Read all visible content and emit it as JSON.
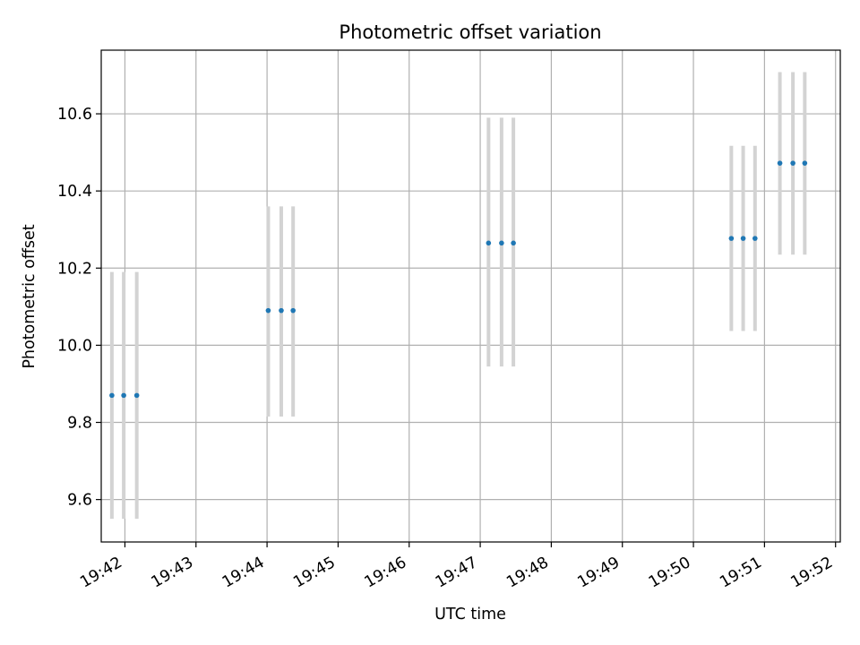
{
  "chart_data": {
    "type": "scatter",
    "title": "Photometric offset variation",
    "xlabel": "UTC time",
    "ylabel": "Photometric offset",
    "xlim": [
      "19:41:40",
      "19:52:04"
    ],
    "ylim": [
      9.49,
      10.765
    ],
    "x_ticks": [
      "19:42",
      "19:43",
      "19:44",
      "19:45",
      "19:46",
      "19:47",
      "19:48",
      "19:49",
      "19:50",
      "19:51",
      "19:52"
    ],
    "y_ticks": [
      "9.6",
      "9.8",
      "10.0",
      "10.2",
      "10.4",
      "10.6"
    ],
    "grid": true,
    "legend": "none",
    "colors": {
      "points": "#1f77b4",
      "errorbars": "#d3d3d3",
      "grid": "#b0b0b0",
      "axes": "#000000"
    },
    "points": [
      {
        "x": "19:41:49",
        "y": 9.87,
        "err_low": 9.55,
        "err_high": 10.19
      },
      {
        "x": "19:41:59",
        "y": 9.87,
        "err_low": 9.55,
        "err_high": 10.19
      },
      {
        "x": "19:42:10",
        "y": 9.87,
        "err_low": 9.55,
        "err_high": 10.19
      },
      {
        "x": "19:44:01",
        "y": 10.09,
        "err_low": 9.815,
        "err_high": 10.36
      },
      {
        "x": "19:44:12",
        "y": 10.09,
        "err_low": 9.815,
        "err_high": 10.36
      },
      {
        "x": "19:44:22",
        "y": 10.09,
        "err_low": 9.815,
        "err_high": 10.36
      },
      {
        "x": "19:47:07",
        "y": 10.265,
        "err_low": 9.945,
        "err_high": 10.59
      },
      {
        "x": "19:47:18",
        "y": 10.265,
        "err_low": 9.945,
        "err_high": 10.59
      },
      {
        "x": "19:47:28",
        "y": 10.265,
        "err_low": 9.945,
        "err_high": 10.59
      },
      {
        "x": "19:50:32",
        "y": 10.277,
        "err_low": 10.037,
        "err_high": 10.517
      },
      {
        "x": "19:50:42",
        "y": 10.277,
        "err_low": 10.037,
        "err_high": 10.517
      },
      {
        "x": "19:50:52",
        "y": 10.277,
        "err_low": 10.037,
        "err_high": 10.517
      },
      {
        "x": "19:51:13",
        "y": 10.472,
        "err_low": 10.235,
        "err_high": 10.708
      },
      {
        "x": "19:51:24",
        "y": 10.472,
        "err_low": 10.235,
        "err_high": 10.708
      },
      {
        "x": "19:51:34",
        "y": 10.472,
        "err_low": 10.235,
        "err_high": 10.708
      }
    ]
  }
}
